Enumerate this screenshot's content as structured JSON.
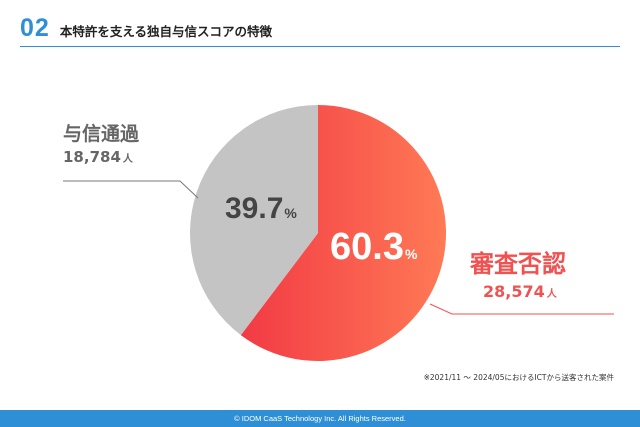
{
  "header": {
    "number": "02",
    "title": "本特許を支える独自与信スコアの特徴"
  },
  "chart_data": {
    "type": "pie",
    "slices": [
      {
        "label": "審査否認",
        "count": "28,574",
        "percent": 60.3,
        "percent_text": "60.3",
        "color": "#f54a4a"
      },
      {
        "label": "与信通過",
        "count": "18,784",
        "percent": 39.7,
        "percent_text": "39.7",
        "color": "#c4c4c4"
      }
    ],
    "unit": "人",
    "percent_sign": "%"
  },
  "note": "※2021/11 〜 2024/05におけるICTから送客された案件",
  "footer": "© IDOM CaaS Technology Inc. All Rights Reserved."
}
